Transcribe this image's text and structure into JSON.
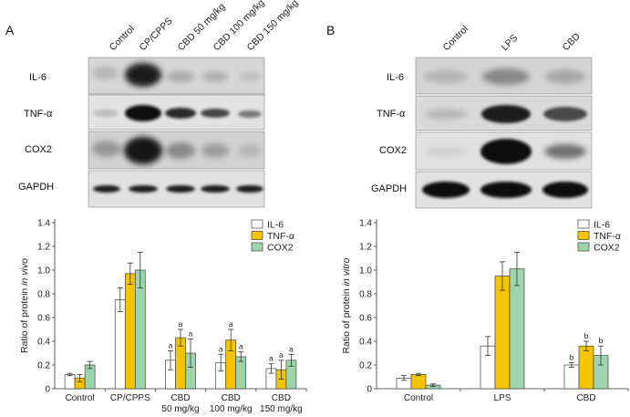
{
  "panel_a": {
    "letter": "A",
    "lanes": [
      "Control",
      "CP/CPPS",
      "CBD 50 mg/kg",
      "CBD 100 mg/kg",
      "CBD 150 mg/kg"
    ],
    "blots": [
      "IL-6",
      "TNF-α",
      "COX2",
      "GAPDH"
    ]
  },
  "panel_b": {
    "letter": "B",
    "lanes": [
      "Control",
      "LPS",
      "CBD"
    ],
    "blots": [
      "IL-6",
      "TNF-α",
      "COX2",
      "GAPDH"
    ]
  },
  "chart_data": [
    {
      "type": "bar",
      "title": "",
      "ylabel_parts": [
        "Ratio of protein ",
        "in vivo"
      ],
      "categories": [
        [
          "Control"
        ],
        [
          "CP/CPPS"
        ],
        [
          "CBD",
          "50 mg/kg"
        ],
        [
          "CBD",
          "100 mg/kg"
        ],
        [
          "CBD",
          "150 mg/kg"
        ]
      ],
      "ylim": [
        0,
        1.4
      ],
      "yticks": [
        "0",
        "0.2",
        "0.4",
        "0.6",
        "0.8",
        "1.0",
        "1.2",
        "1.4"
      ],
      "legend_position": "top-right",
      "series": [
        {
          "name": "IL-6",
          "color": "#ffffff",
          "values": [
            0.12,
            0.75,
            0.24,
            0.22,
            0.17
          ],
          "errors": [
            0.01,
            0.1,
            0.08,
            0.07,
            0.04
          ],
          "labels": [
            "",
            "",
            "a",
            "a",
            "a"
          ]
        },
        {
          "name": "TNF-α",
          "color": "#f5c400",
          "values": [
            0.09,
            0.97,
            0.43,
            0.41,
            0.16
          ],
          "errors": [
            0.03,
            0.09,
            0.07,
            0.09,
            0.08
          ],
          "labels": [
            "",
            "",
            "a",
            "a",
            "a"
          ]
        },
        {
          "name": "COX2",
          "color": "#9dd3ad",
          "values": [
            0.2,
            1.0,
            0.3,
            0.27,
            0.24
          ],
          "errors": [
            0.03,
            0.15,
            0.12,
            0.04,
            0.05
          ],
          "labels": [
            "",
            "",
            "a",
            "a",
            "a"
          ]
        }
      ]
    },
    {
      "type": "bar",
      "title": "",
      "ylabel_parts": [
        "Ratio of protein ",
        "in vitro"
      ],
      "categories": [
        [
          "Control"
        ],
        [
          "LPS"
        ],
        [
          "CBD"
        ]
      ],
      "ylim": [
        0,
        1.4
      ],
      "yticks": [
        "0",
        "0.2",
        "0.4",
        "0.6",
        "0.8",
        "1.0",
        "1.2",
        "1.4"
      ],
      "legend_position": "top-right",
      "series": [
        {
          "name": "IL-6",
          "color": "#ffffff",
          "values": [
            0.09,
            0.36,
            0.2
          ],
          "errors": [
            0.02,
            0.08,
            0.02
          ],
          "labels": [
            "",
            "",
            "b"
          ]
        },
        {
          "name": "TNF-α",
          "color": "#f5c400",
          "values": [
            0.12,
            0.95,
            0.36
          ],
          "errors": [
            0.01,
            0.12,
            0.04
          ],
          "labels": [
            "",
            "",
            "b"
          ]
        },
        {
          "name": "COX2",
          "color": "#9dd3ad",
          "values": [
            0.03,
            1.01,
            0.28
          ],
          "errors": [
            0.01,
            0.14,
            0.08
          ],
          "labels": [
            "",
            "",
            "b"
          ]
        }
      ]
    }
  ]
}
